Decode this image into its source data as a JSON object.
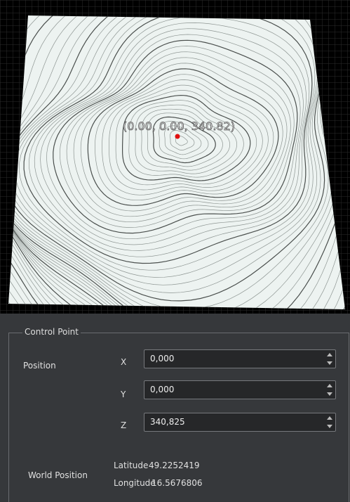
{
  "viewport": {
    "point_label": "(0.00, 0.00, 340.82)"
  },
  "control_point": {
    "title": "Control Point",
    "position_label": "Position",
    "fields": [
      {
        "axis": "X",
        "value": "0,000"
      },
      {
        "axis": "Y",
        "value": "0,000"
      },
      {
        "axis": "Z",
        "value": "340,825"
      }
    ],
    "world_position": {
      "label": "World Position",
      "latitude_label": "Latitude",
      "latitude": "49.2252419",
      "longitude_label": "Longitude",
      "longitude": "16.5676806"
    }
  }
}
